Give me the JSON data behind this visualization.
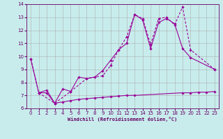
{
  "xlabel": "Windchill (Refroidissement éolien,°C)",
  "bg_color": "#c8ecec",
  "line_color": "#990099",
  "grid_color": "#aaaaaa",
  "line1_x": [
    0,
    1,
    2,
    3,
    4,
    5,
    6,
    7,
    8,
    9,
    10,
    11,
    12,
    13,
    14,
    15,
    16,
    17,
    18,
    19,
    20,
    23
  ],
  "line1_y": [
    9.8,
    7.2,
    7.4,
    6.4,
    7.5,
    7.3,
    8.4,
    8.3,
    8.4,
    8.9,
    9.7,
    10.5,
    11.0,
    13.2,
    12.8,
    10.6,
    12.6,
    12.9,
    12.5,
    10.6,
    9.9,
    9.0
  ],
  "line2_x": [
    0,
    1,
    3,
    5,
    7,
    9,
    10,
    11,
    12,
    13,
    14,
    15,
    16,
    17,
    18,
    19,
    20,
    23
  ],
  "line2_y": [
    9.8,
    7.2,
    6.4,
    7.3,
    8.3,
    8.5,
    9.3,
    10.5,
    11.5,
    13.2,
    12.9,
    10.9,
    12.9,
    13.0,
    12.4,
    13.8,
    10.5,
    9.0
  ],
  "line3_x": [
    1,
    2,
    3,
    4,
    5,
    6,
    7,
    8,
    9,
    10,
    11,
    12,
    13,
    19,
    20,
    21,
    22,
    23
  ],
  "line3_y": [
    7.2,
    7.2,
    6.4,
    6.5,
    6.6,
    6.7,
    6.75,
    6.8,
    6.85,
    6.9,
    6.95,
    7.0,
    7.0,
    7.2,
    7.2,
    7.25,
    7.25,
    7.3
  ],
  "xlim": [
    -0.5,
    23.5
  ],
  "ylim": [
    6,
    14
  ],
  "yticks": [
    6,
    7,
    8,
    9,
    10,
    11,
    12,
    13,
    14
  ],
  "xticks": [
    0,
    1,
    2,
    3,
    4,
    5,
    6,
    7,
    8,
    9,
    10,
    11,
    12,
    13,
    14,
    15,
    16,
    17,
    18,
    19,
    20,
    21,
    22,
    23
  ]
}
